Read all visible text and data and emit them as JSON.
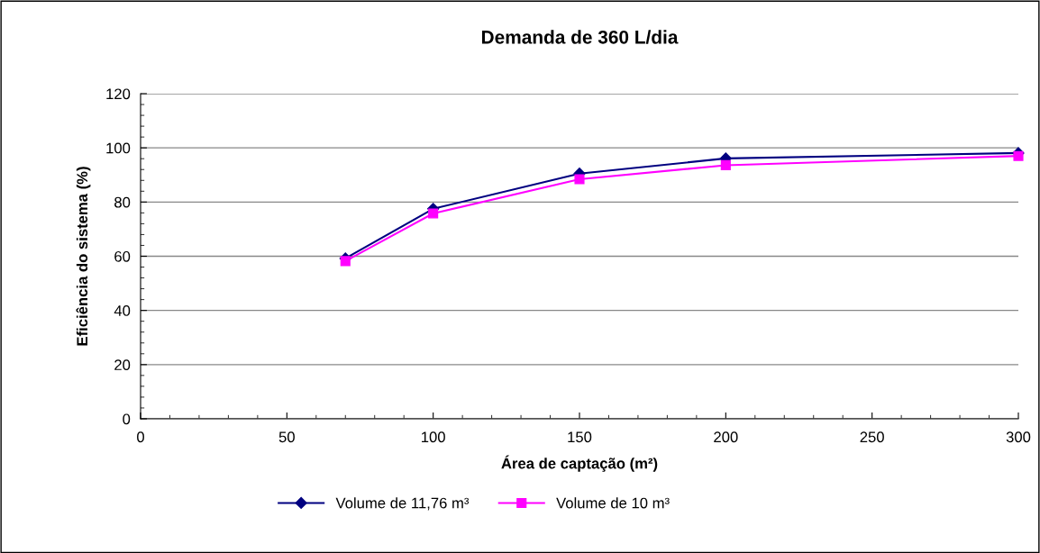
{
  "chart_data": {
    "type": "line",
    "title": "Demanda de 360 L/dia",
    "xlabel": "Área de captação (m²)",
    "ylabel": "Eficiência do sistema (%)",
    "x": [
      70,
      100,
      150,
      200,
      300
    ],
    "series": [
      {
        "name": "Volume de 11,76 m³",
        "color": "#000080",
        "marker": "diamond",
        "values": [
          59.2,
          77.5,
          90.5,
          96.1,
          98.1
        ]
      },
      {
        "name": "Volume de 10 m³",
        "color": "#ff00ff",
        "marker": "square",
        "values": [
          58.2,
          75.8,
          88.4,
          93.6,
          97.0
        ]
      }
    ],
    "xlim": [
      0,
      300
    ],
    "xticks": [
      0,
      50,
      100,
      150,
      200,
      250,
      300
    ],
    "ylim": [
      0,
      120
    ],
    "yticks": [
      0,
      20,
      40,
      60,
      80,
      100,
      120
    ],
    "grid": "y",
    "legend": "bottom",
    "line_style": "solid"
  }
}
